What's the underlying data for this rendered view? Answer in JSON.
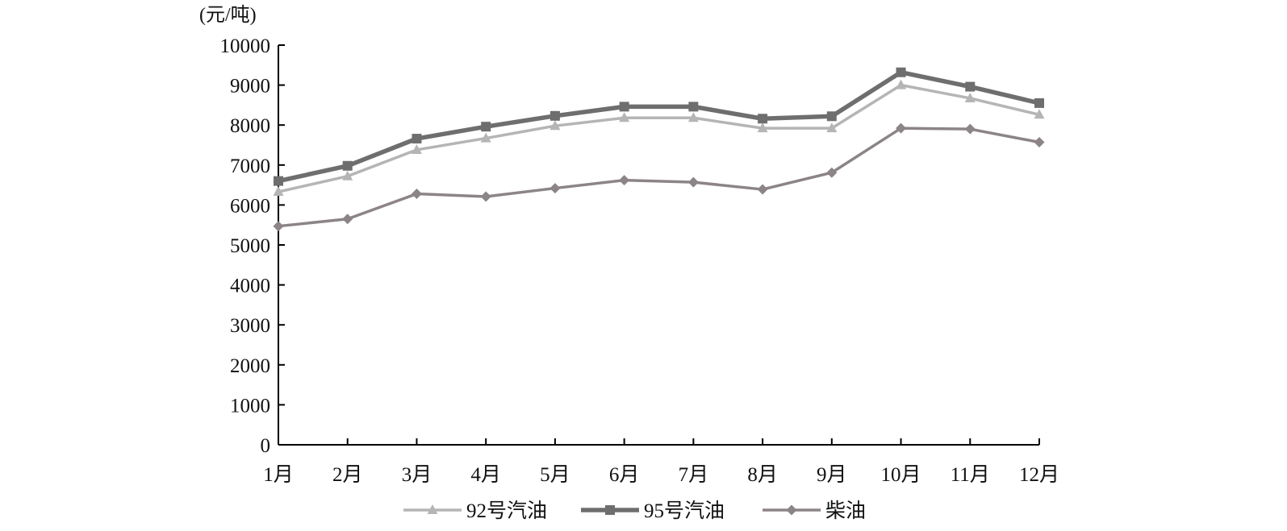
{
  "chart_data": {
    "type": "line",
    "title": "",
    "xlabel": "",
    "ylabel": "(元/吨)",
    "categories": [
      "1月",
      "2月",
      "3月",
      "4月",
      "5月",
      "6月",
      "7月",
      "8月",
      "9月",
      "10月",
      "11月",
      "12月"
    ],
    "yticks": [
      "0",
      "1000",
      "2000",
      "3000",
      "4000",
      "5000",
      "6000",
      "7000",
      "8000",
      "9000",
      "10000"
    ],
    "ylim": [
      0,
      10000
    ],
    "grid": false,
    "legend_position": "bottom",
    "series": [
      {
        "name": "92号汽油",
        "marker": "triangle",
        "color": "#b5b5b5",
        "values": [
          6330,
          6720,
          7380,
          7670,
          7980,
          8180,
          8180,
          7920,
          7920,
          9000,
          8670,
          8260
        ]
      },
      {
        "name": "95号汽油",
        "marker": "square",
        "color": "#6e6e6e",
        "values": [
          6600,
          6980,
          7660,
          7960,
          8230,
          8460,
          8460,
          8160,
          8220,
          9320,
          8960,
          8550
        ]
      },
      {
        "name": "柴油",
        "marker": "diamond",
        "color": "#8c8486",
        "values": [
          5470,
          5650,
          6280,
          6210,
          6420,
          6620,
          6570,
          6390,
          6810,
          7920,
          7900,
          7570
        ]
      }
    ]
  }
}
